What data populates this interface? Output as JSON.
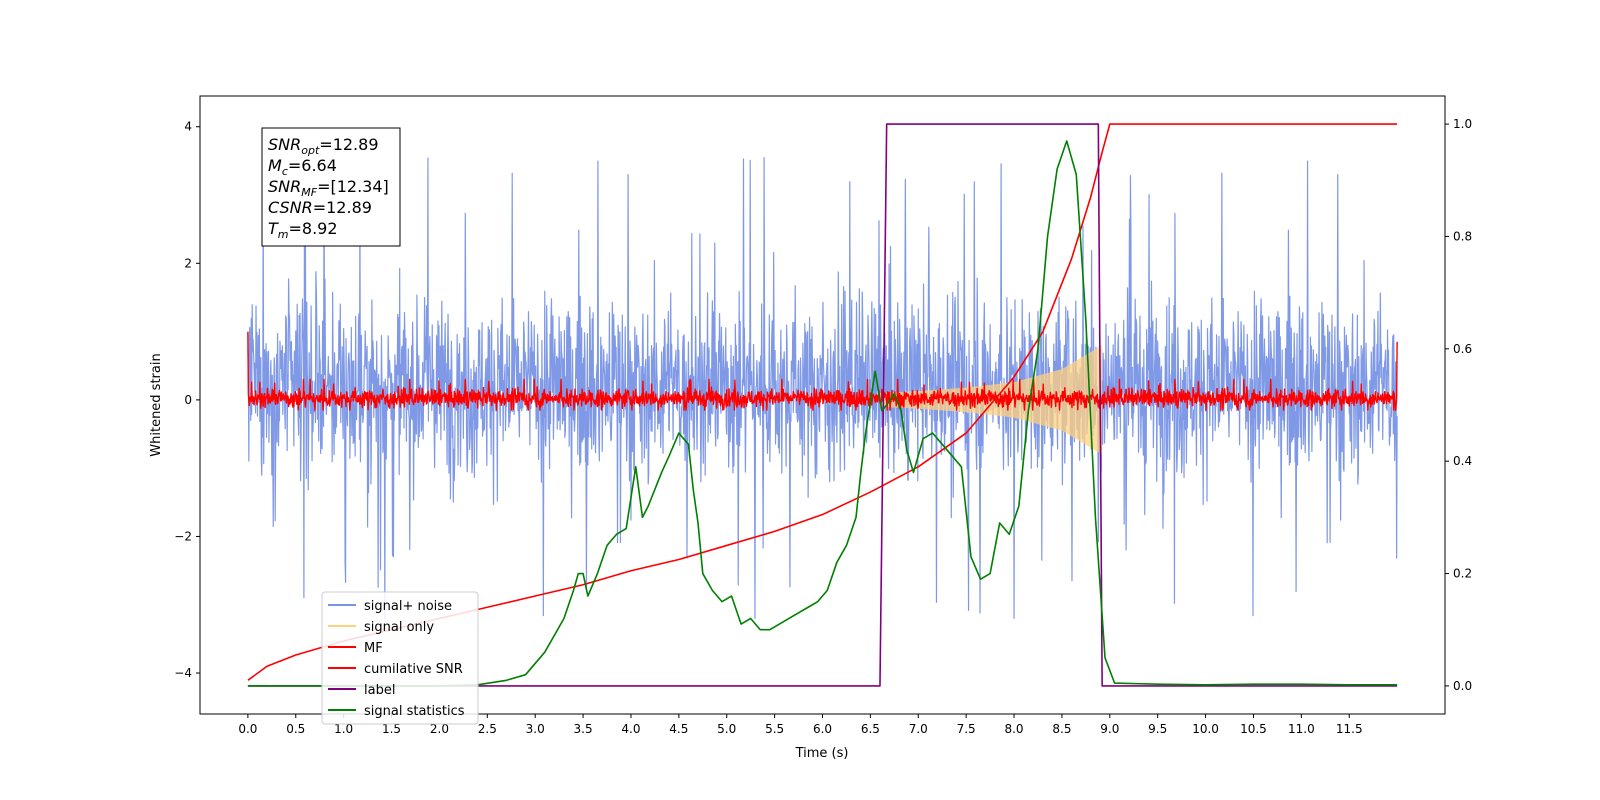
{
  "chart_data": {
    "type": "line",
    "title": "",
    "xlabel": "Time (s)",
    "ylabel": "Whitened strain",
    "xlim": [
      -0.5,
      12.5
    ],
    "ylim": [
      -4.6,
      4.45
    ],
    "y2lim": [
      -0.05,
      1.05
    ],
    "x_ticks": [
      0.0,
      0.5,
      1.0,
      1.5,
      2.0,
      2.5,
      3.0,
      3.5,
      4.0,
      4.5,
      5.0,
      5.5,
      6.0,
      6.5,
      7.0,
      7.5,
      8.0,
      8.5,
      9.0,
      9.5,
      10.0,
      10.5,
      11.0,
      11.5
    ],
    "x_tick_labels": [
      "0.0",
      "0.5",
      "1.0",
      "1.5",
      "2.0",
      "2.5",
      "3.0",
      "3.5",
      "4.0",
      "4.5",
      "5.0",
      "5.5",
      "6.0",
      "6.5",
      "7.0",
      "7.5",
      "8.0",
      "8.5",
      "9.0",
      "9.5",
      "10.0",
      "10.5",
      "11.0",
      "11.5"
    ],
    "y_ticks": [
      -4,
      -2,
      0,
      2,
      4
    ],
    "y_tick_labels": [
      "−4",
      "−2",
      "0",
      "2",
      "4"
    ],
    "y2_ticks": [
      0.0,
      0.2,
      0.4,
      0.6,
      0.8,
      1.0
    ],
    "y2_tick_labels": [
      "0.0",
      "0.2",
      "0.4",
      "0.6",
      "0.8",
      "1.0"
    ],
    "grid": false,
    "legend_position": "lower-left",
    "legend": [
      {
        "label": "signal+ noise",
        "color": "#7893e6"
      },
      {
        "label": "signal only",
        "color": "#ffd080"
      },
      {
        "label": "MF",
        "color": "#ff0000"
      },
      {
        "label": "cumilative SNR",
        "color": "#ff0000"
      },
      {
        "label": "label",
        "color": "#800080"
      },
      {
        "label": "signal statistics",
        "color": "#008000"
      }
    ],
    "annotation": [
      {
        "main": "SNR",
        "sub": "opt",
        "rest": "=12.89"
      },
      {
        "main": "M",
        "sub": "c",
        "rest": "=6.64"
      },
      {
        "main": "SNR",
        "sub": "MF",
        "rest": "=[12.34]"
      },
      {
        "main": "CSNR",
        "sub": "",
        "rest": "=12.89"
      },
      {
        "main": "T",
        "sub": "m",
        "rest": "=8.92"
      }
    ],
    "series": [
      {
        "name": "signal+ noise",
        "axis": "left",
        "color": "#7893e6",
        "kind": "noise",
        "x_range": [
          0.0,
          12.0
        ],
        "typical_range": [
          -1.0,
          1.4
        ],
        "extreme_range": [
          -3.2,
          4.0
        ]
      },
      {
        "name": "signal only",
        "axis": "left",
        "color": "#ffd080",
        "kind": "chirp-envelope",
        "x": [
          6.6,
          7.0,
          7.5,
          8.0,
          8.5,
          8.92
        ],
        "amplitude": [
          0.1,
          0.13,
          0.18,
          0.26,
          0.45,
          0.8
        ]
      },
      {
        "name": "MF",
        "axis": "left",
        "color": "#ff0000",
        "kind": "noise",
        "x_range": [
          0.0,
          12.0
        ],
        "typical_range": [
          -0.1,
          0.15
        ],
        "extreme_range": [
          -0.15,
          0.3
        ],
        "endpoints": [
          1.0,
          0.85
        ]
      },
      {
        "name": "cumilative SNR",
        "axis": "right",
        "color": "#ff0000",
        "x": [
          0.0,
          0.2,
          0.5,
          1.0,
          1.5,
          2.0,
          2.5,
          3.0,
          3.5,
          4.0,
          4.5,
          5.0,
          5.5,
          6.0,
          6.5,
          7.0,
          7.5,
          8.0,
          8.3,
          8.6,
          8.8,
          8.92,
          9.0,
          12.0
        ],
        "values": [
          0.01,
          0.035,
          0.055,
          0.08,
          0.1,
          0.12,
          0.14,
          0.16,
          0.18,
          0.205,
          0.225,
          0.25,
          0.275,
          0.305,
          0.345,
          0.39,
          0.45,
          0.55,
          0.63,
          0.76,
          0.87,
          0.95,
          1.0,
          1.0
        ]
      },
      {
        "name": "label",
        "axis": "right",
        "color": "#800080",
        "x": [
          0.0,
          6.6,
          6.67,
          8.88,
          8.92,
          12.0
        ],
        "values": [
          0.0,
          0.0,
          1.0,
          1.0,
          0.0,
          0.0
        ]
      },
      {
        "name": "signal statistics",
        "axis": "right",
        "color": "#008000",
        "x": [
          0.0,
          0.5,
          1.0,
          1.5,
          2.0,
          2.4,
          2.7,
          2.9,
          3.0,
          3.1,
          3.2,
          3.3,
          3.4,
          3.45,
          3.5,
          3.55,
          3.65,
          3.75,
          3.85,
          3.95,
          4.05,
          4.12,
          4.18,
          4.25,
          4.32,
          4.4,
          4.5,
          4.6,
          4.65,
          4.7,
          4.75,
          4.85,
          4.95,
          5.05,
          5.15,
          5.25,
          5.35,
          5.45,
          5.55,
          5.65,
          5.75,
          5.85,
          5.95,
          6.05,
          6.15,
          6.25,
          6.35,
          6.4,
          6.45,
          6.55,
          6.62,
          6.67,
          6.75,
          6.82,
          6.88,
          6.95,
          7.05,
          7.15,
          7.25,
          7.35,
          7.45,
          7.55,
          7.65,
          7.75,
          7.85,
          7.95,
          8.05,
          8.15,
          8.25,
          8.35,
          8.45,
          8.55,
          8.65,
          8.75,
          8.85,
          8.95,
          9.05,
          9.5,
          10.0,
          10.5,
          11.0,
          11.5,
          12.0
        ],
        "values": [
          0.0,
          0.0,
          0.0,
          0.0,
          0.0,
          0.002,
          0.01,
          0.02,
          0.04,
          0.06,
          0.09,
          0.12,
          0.17,
          0.2,
          0.2,
          0.16,
          0.2,
          0.25,
          0.27,
          0.28,
          0.39,
          0.3,
          0.32,
          0.35,
          0.38,
          0.41,
          0.45,
          0.43,
          0.35,
          0.29,
          0.2,
          0.17,
          0.15,
          0.16,
          0.11,
          0.12,
          0.1,
          0.1,
          0.11,
          0.12,
          0.13,
          0.14,
          0.15,
          0.17,
          0.22,
          0.25,
          0.3,
          0.38,
          0.45,
          0.56,
          0.49,
          0.5,
          0.52,
          0.49,
          0.42,
          0.38,
          0.44,
          0.45,
          0.43,
          0.41,
          0.39,
          0.23,
          0.19,
          0.2,
          0.29,
          0.27,
          0.32,
          0.49,
          0.6,
          0.8,
          0.92,
          0.97,
          0.91,
          0.65,
          0.3,
          0.05,
          0.005,
          0.003,
          0.002,
          0.003,
          0.003,
          0.002,
          0.002
        ]
      }
    ]
  }
}
